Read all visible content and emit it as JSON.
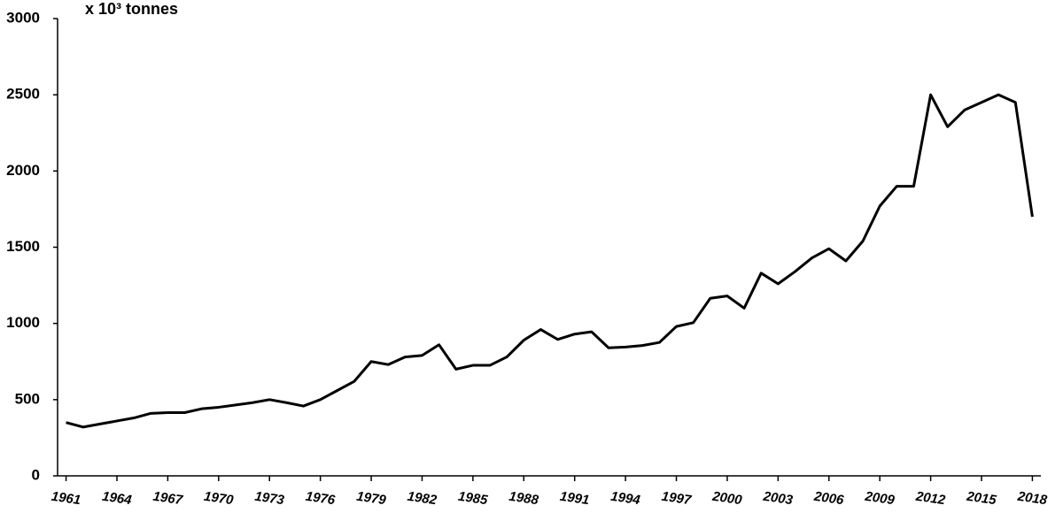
{
  "chart_data": {
    "type": "line",
    "y_label": "x 10³ tonnes",
    "x": [
      1961,
      1962,
      1963,
      1964,
      1965,
      1966,
      1967,
      1968,
      1969,
      1970,
      1971,
      1972,
      1973,
      1974,
      1975,
      1976,
      1977,
      1978,
      1979,
      1980,
      1981,
      1982,
      1983,
      1984,
      1985,
      1986,
      1987,
      1988,
      1989,
      1990,
      1991,
      1992,
      1993,
      1994,
      1995,
      1996,
      1997,
      1998,
      1999,
      2000,
      2001,
      2002,
      2003,
      2004,
      2005,
      2006,
      2007,
      2008,
      2009,
      2010,
      2011,
      2012,
      2013,
      2014,
      2015,
      2016,
      2017,
      2018
    ],
    "values": [
      350,
      320,
      340,
      360,
      380,
      410,
      415,
      415,
      440,
      450,
      465,
      480,
      500,
      480,
      458,
      500,
      560,
      620,
      750,
      730,
      780,
      790,
      860,
      700,
      725,
      725,
      780,
      890,
      960,
      895,
      930,
      945,
      840,
      845,
      855,
      875,
      980,
      1005,
      1165,
      1180,
      1100,
      1330,
      1260,
      1340,
      1430,
      1490,
      1410,
      1540,
      1770,
      1900,
      1900,
      2500,
      2290,
      2400,
      2450,
      2500,
      2450,
      1700
    ],
    "color": "#000000",
    "xlim": [
      1960.5,
      2018.5
    ],
    "xticks": [
      1961,
      1964,
      1967,
      1970,
      1973,
      1976,
      1979,
      1982,
      1985,
      1988,
      1991,
      1994,
      1997,
      2000,
      2003,
      2006,
      2009,
      2012,
      2015,
      2018
    ],
    "ylim": [
      0,
      3000
    ],
    "yticks": [
      0,
      500,
      1000,
      1500,
      2000,
      2500,
      3000
    ]
  }
}
